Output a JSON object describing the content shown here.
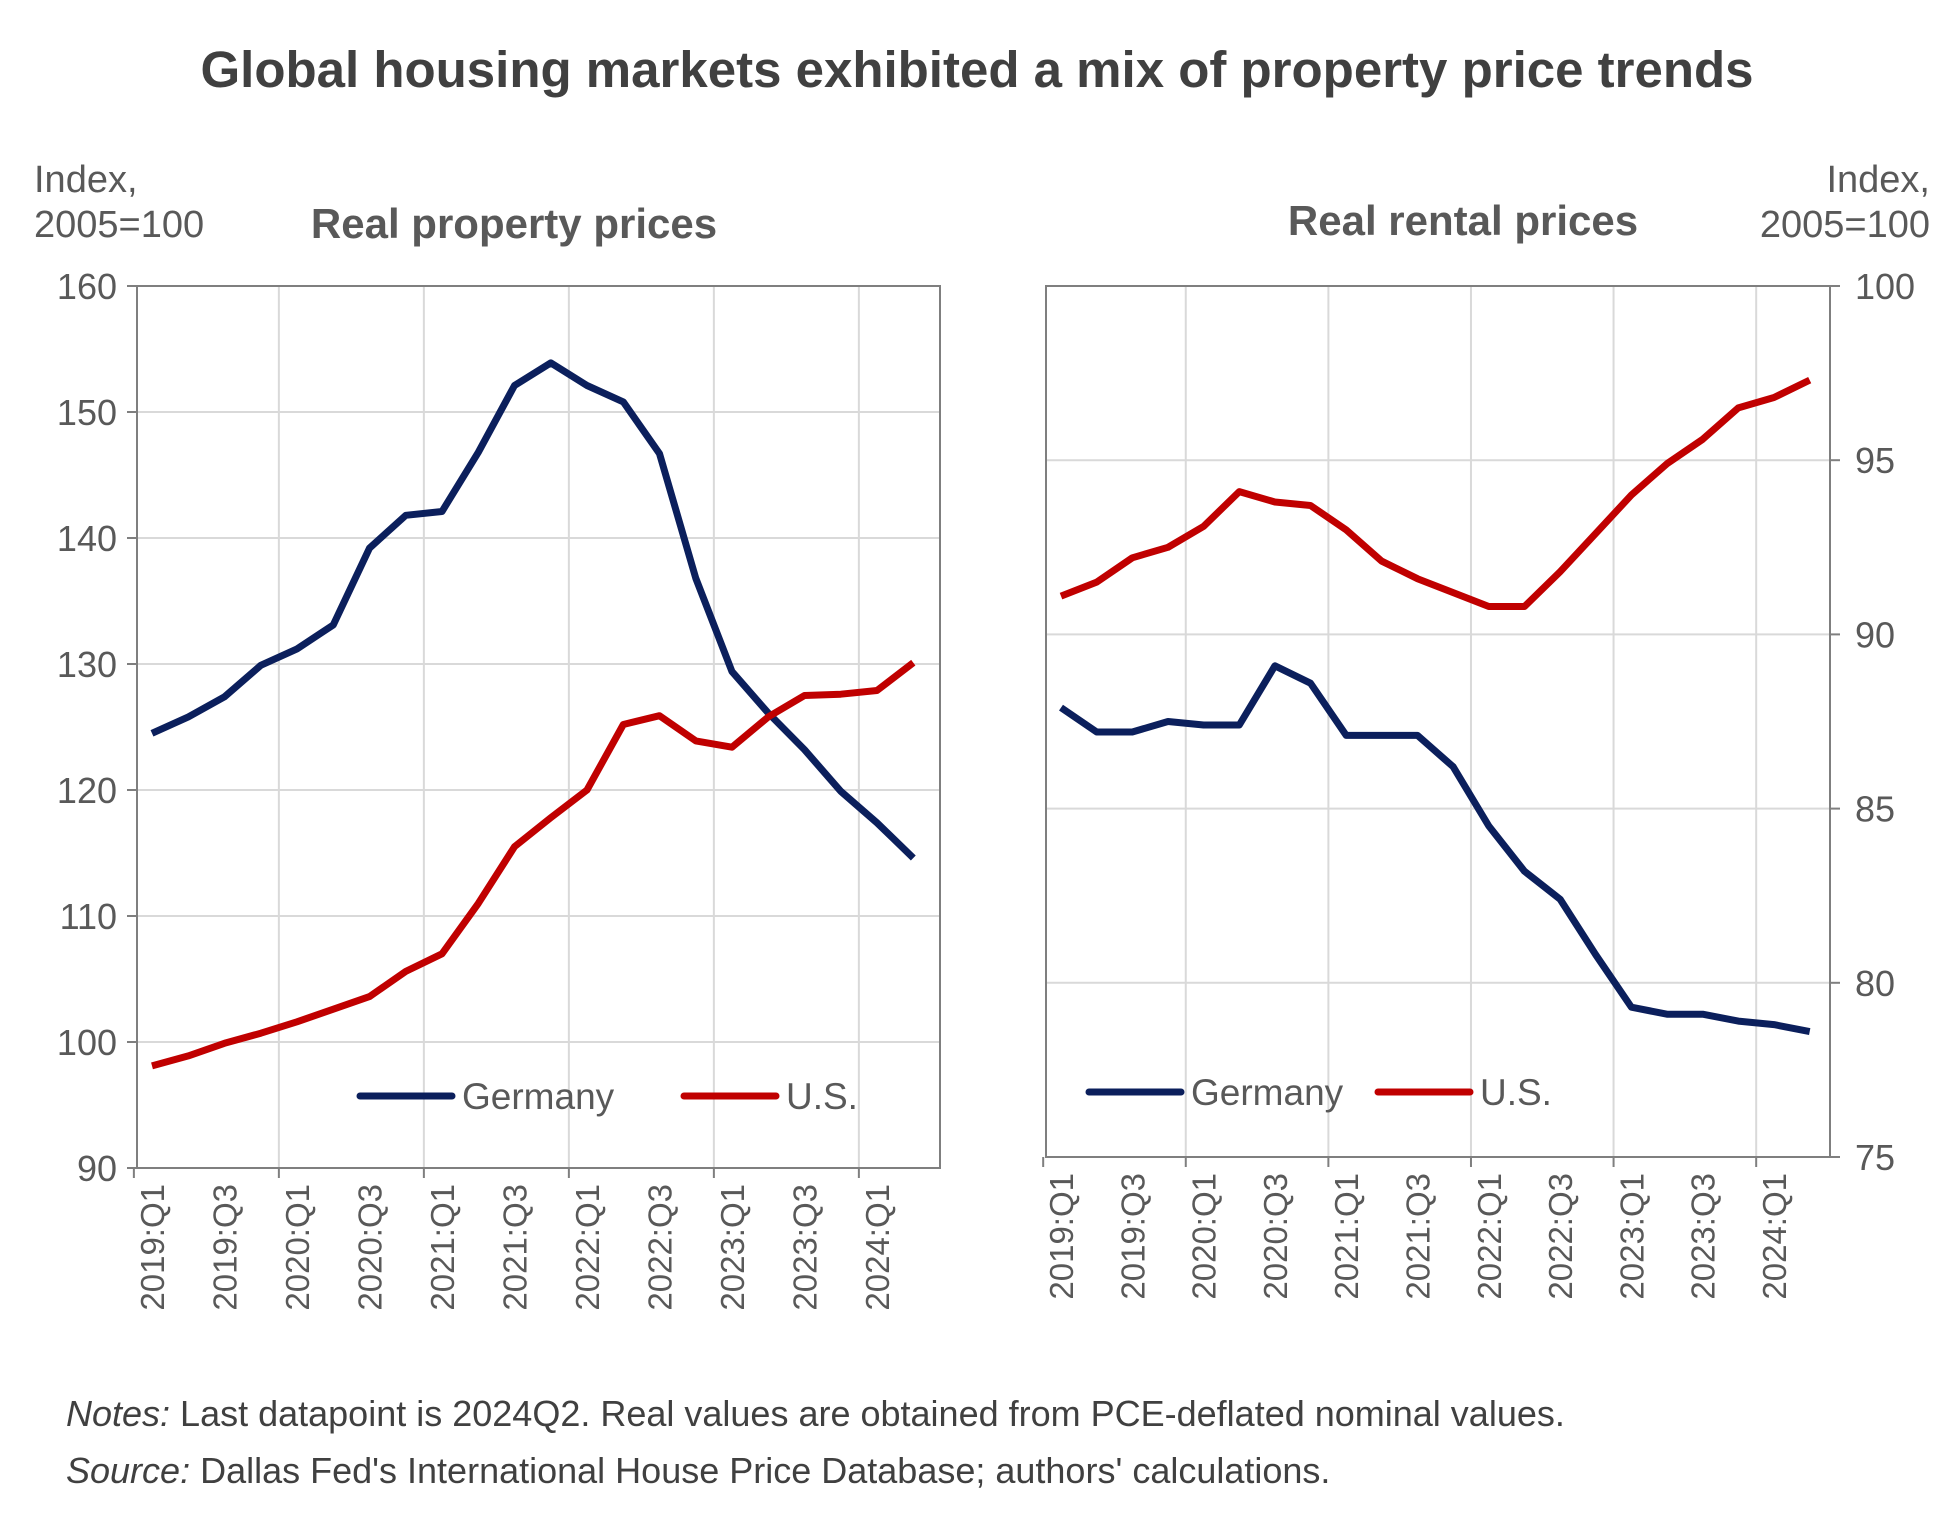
{
  "title": "Global housing markets exhibited a mix of property price trends",
  "notes": {
    "notes_label": "Notes:",
    "notes_text": " Last datapoint is 2024Q2. Real values are obtained from PCE-deflated nominal values.",
    "source_label": "Source:",
    "source_text": " Dallas Fed's International House Price Database; authors' calculations."
  },
  "colors": {
    "Germany": "#0b1f5c",
    "U.S.": "#c00000",
    "grid": "#d9d9d9",
    "axis": "#7f7f7f"
  },
  "chart_data": [
    {
      "type": "line",
      "title": "Real property prices",
      "ylabel": "Index, 2005=100",
      "ylabel_lines": [
        "Index,",
        "2005=100"
      ],
      "y_axis_side": "left",
      "ylim": [
        90,
        160
      ],
      "yticks": [
        90,
        100,
        110,
        120,
        130,
        140,
        150,
        160
      ],
      "grid": true,
      "legend_placement": "bottom-center",
      "x": [
        "2019:Q1",
        "2019:Q2",
        "2019:Q3",
        "2019:Q4",
        "2020:Q1",
        "2020:Q2",
        "2020:Q3",
        "2020:Q4",
        "2021:Q1",
        "2021:Q2",
        "2021:Q3",
        "2021:Q4",
        "2022:Q1",
        "2022:Q2",
        "2022:Q3",
        "2022:Q4",
        "2023:Q1",
        "2023:Q2",
        "2023:Q3",
        "2023:Q4",
        "2024:Q1",
        "2024:Q2"
      ],
      "x_tick_labels": [
        "2019:Q1",
        "2019:Q3",
        "2020:Q1",
        "2020:Q3",
        "2021:Q1",
        "2021:Q3",
        "2022:Q1",
        "2022:Q3",
        "2023:Q1",
        "2023:Q3",
        "2024:Q1"
      ],
      "series": [
        {
          "name": "Germany",
          "values": [
            124.5,
            125.8,
            127.4,
            129.9,
            131.2,
            133.1,
            139.2,
            141.8,
            142.1,
            146.8,
            152.1,
            153.9,
            152.1,
            150.8,
            146.7,
            136.8,
            129.4,
            126.1,
            123.2,
            119.9,
            117.4,
            114.6
          ]
        },
        {
          "name": "U.S.",
          "values": [
            98.1,
            98.9,
            99.9,
            100.7,
            101.6,
            102.6,
            103.6,
            105.6,
            107.0,
            111.0,
            115.5,
            117.8,
            120.0,
            125.2,
            125.9,
            123.9,
            123.4,
            125.8,
            127.5,
            127.6,
            127.9,
            130.1
          ]
        }
      ]
    },
    {
      "type": "line",
      "title": "Real rental prices",
      "ylabel": "Index, 2005=100",
      "ylabel_lines": [
        "Index,",
        "2005=100"
      ],
      "y_axis_side": "right",
      "ylim": [
        75,
        100
      ],
      "yticks": [
        75,
        80,
        85,
        90,
        95,
        100
      ],
      "grid": true,
      "legend_placement": "bottom-left",
      "x": [
        "2019:Q1",
        "2019:Q2",
        "2019:Q3",
        "2019:Q4",
        "2020:Q1",
        "2020:Q2",
        "2020:Q3",
        "2020:Q4",
        "2021:Q1",
        "2021:Q2",
        "2021:Q3",
        "2021:Q4",
        "2022:Q1",
        "2022:Q2",
        "2022:Q3",
        "2022:Q4",
        "2023:Q1",
        "2023:Q2",
        "2023:Q3",
        "2023:Q4",
        "2024:Q1",
        "2024:Q2"
      ],
      "x_tick_labels": [
        "2019:Q1",
        "2019:Q3",
        "2020:Q1",
        "2020:Q3",
        "2021:Q1",
        "2021:Q3",
        "2022:Q1",
        "2022:Q3",
        "2023:Q1",
        "2023:Q3",
        "2024:Q1"
      ],
      "series": [
        {
          "name": "Germany",
          "values": [
            87.9,
            87.2,
            87.2,
            87.5,
            87.4,
            87.4,
            89.1,
            88.6,
            87.1,
            87.1,
            87.1,
            86.2,
            84.5,
            83.2,
            82.4,
            80.8,
            79.3,
            79.1,
            79.1,
            78.9,
            78.8,
            78.6
          ]
        },
        {
          "name": "U.S.",
          "values": [
            91.1,
            91.5,
            92.2,
            92.5,
            93.1,
            94.1,
            93.8,
            93.7,
            93.0,
            92.1,
            91.6,
            91.2,
            90.8,
            90.8,
            91.8,
            92.9,
            94.0,
            94.9,
            95.6,
            96.5,
            96.8,
            97.3
          ]
        }
      ]
    }
  ]
}
